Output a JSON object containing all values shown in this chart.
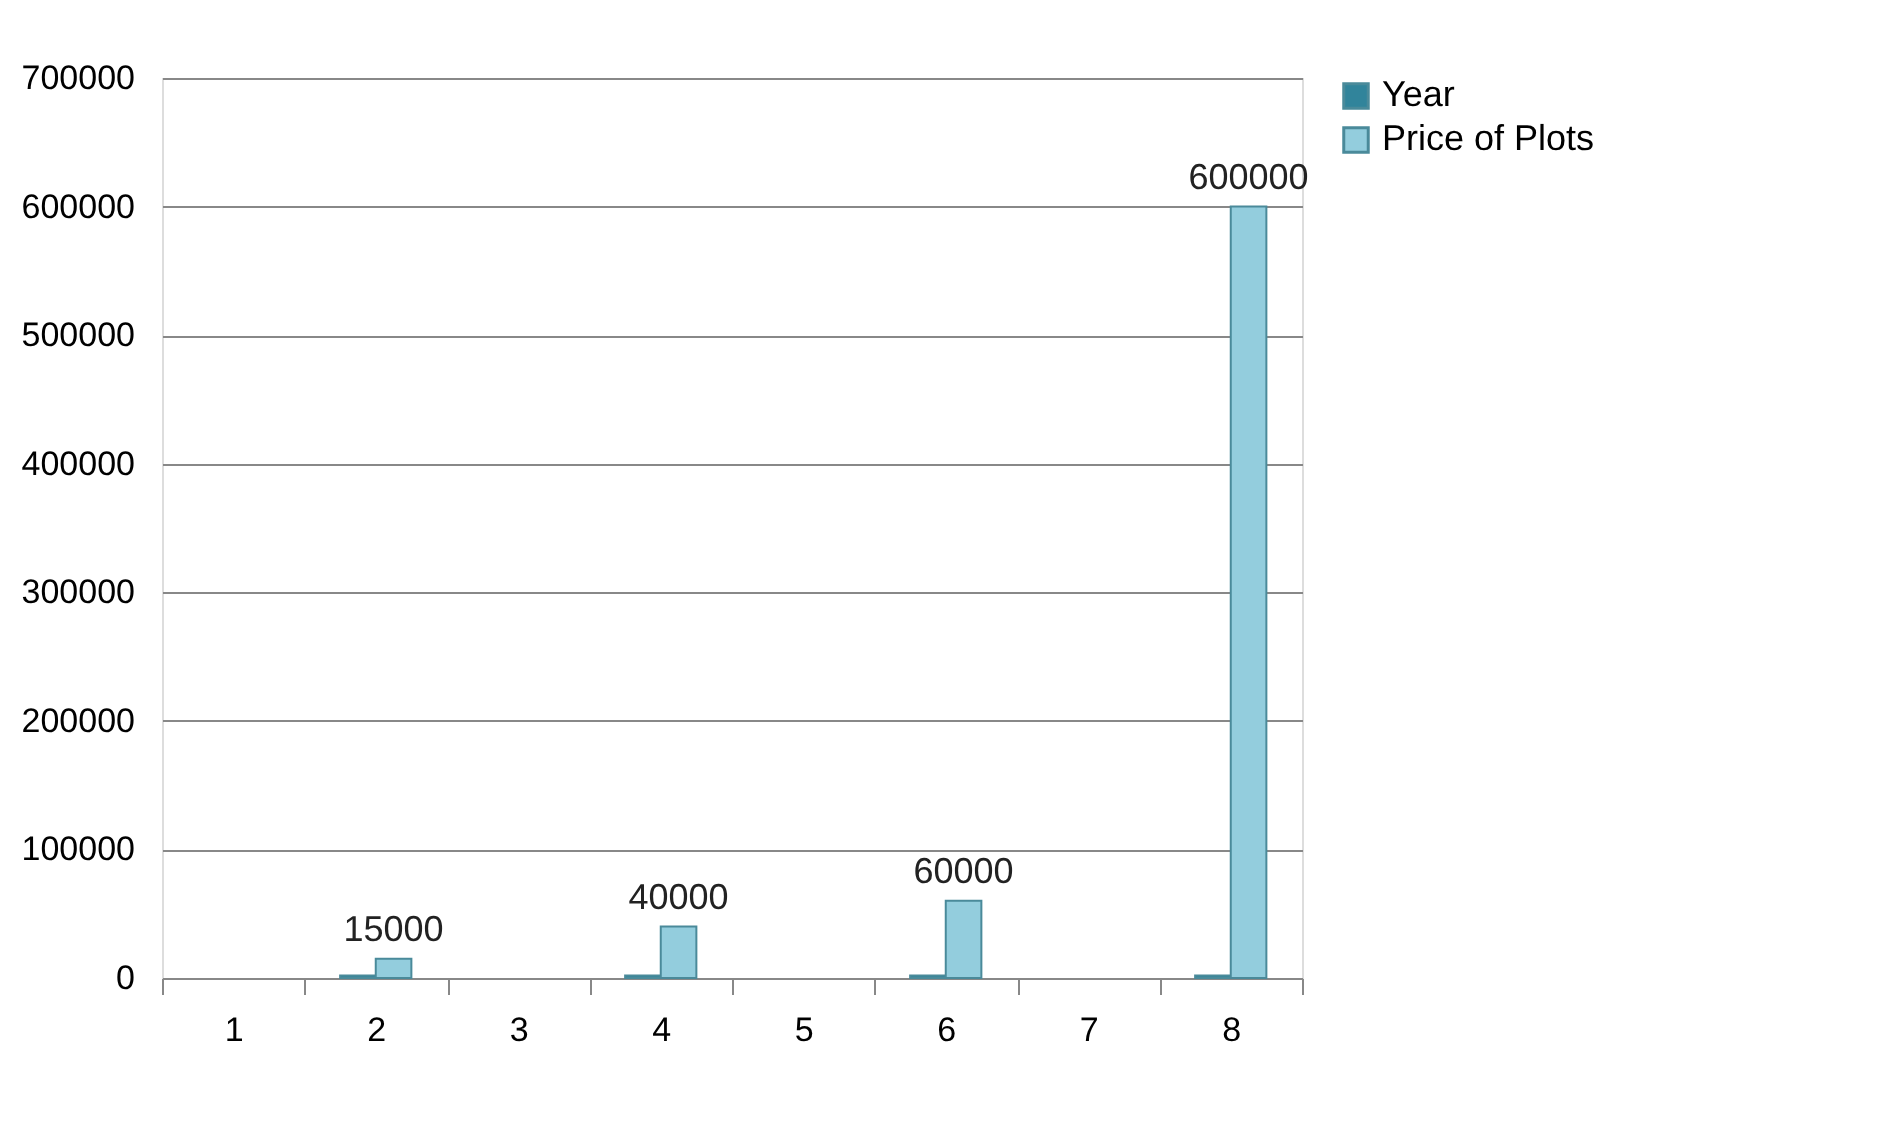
{
  "chart_data": {
    "type": "bar",
    "categories": [
      "1",
      "2",
      "3",
      "4",
      "5",
      "6",
      "7",
      "8"
    ],
    "series": [
      {
        "name": "Year",
        "color": "#31849b",
        "values": [
          null,
          2000,
          null,
          2000,
          null,
          2000,
          null,
          2000
        ]
      },
      {
        "name": "Price of Plots",
        "color": "#93cddd",
        "values": [
          null,
          15000,
          null,
          40000,
          null,
          60000,
          null,
          600000
        ],
        "value_labels": [
          null,
          "15000",
          null,
          "40000",
          null,
          "60000",
          null,
          "600000"
        ]
      }
    ],
    "ylim": [
      0,
      700000
    ],
    "yticks": [
      0,
      100000,
      200000,
      300000,
      400000,
      500000,
      600000,
      700000
    ],
    "grid": "y",
    "legend": "right"
  }
}
